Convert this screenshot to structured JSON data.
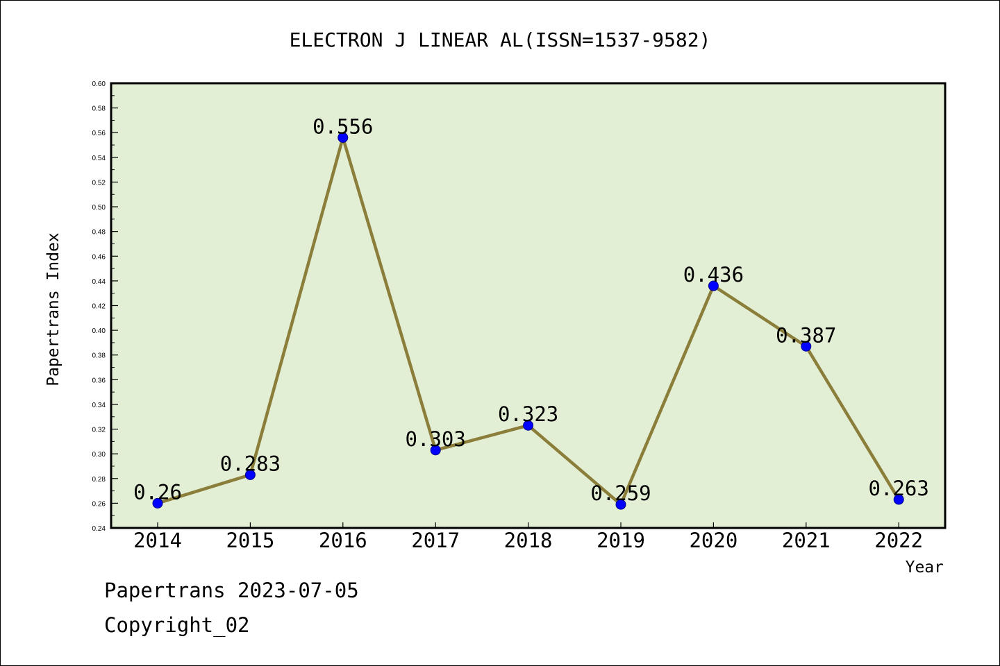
{
  "footer": {
    "date_line": "Papertrans 2023-07-05",
    "copyright": "Copyright_02"
  },
  "colors": {
    "plot_bg": "#e2efd5",
    "line": "#8b7d3a",
    "marker": "#0000ff"
  },
  "chart_data": {
    "type": "line",
    "title": "ELECTRON J LINEAR AL(ISSN=1537-9582)",
    "xlabel": "Year",
    "ylabel": "Papertrans Index",
    "categories": [
      "2014",
      "2015",
      "2016",
      "2017",
      "2018",
      "2019",
      "2020",
      "2021",
      "2022"
    ],
    "series": [
      {
        "values": [
          0.26,
          0.283,
          0.556,
          0.303,
          0.323,
          0.259,
          0.436,
          0.387,
          0.263
        ],
        "labels": [
          "0.26",
          "0.283",
          "0.556",
          "0.303",
          "0.323",
          "0.259",
          "0.436",
          "0.387",
          "0.263"
        ]
      }
    ],
    "ylim": [
      0.24,
      0.6
    ],
    "yticks": [
      "0.24",
      "0.26",
      "0.28",
      "0.30",
      "0.32",
      "0.34",
      "0.36",
      "0.38",
      "0.40",
      "0.42",
      "0.44",
      "0.46",
      "0.48",
      "0.50",
      "0.52",
      "0.54",
      "0.56",
      "0.58",
      "0.60"
    ],
    "grid": false,
    "legend": "none"
  }
}
